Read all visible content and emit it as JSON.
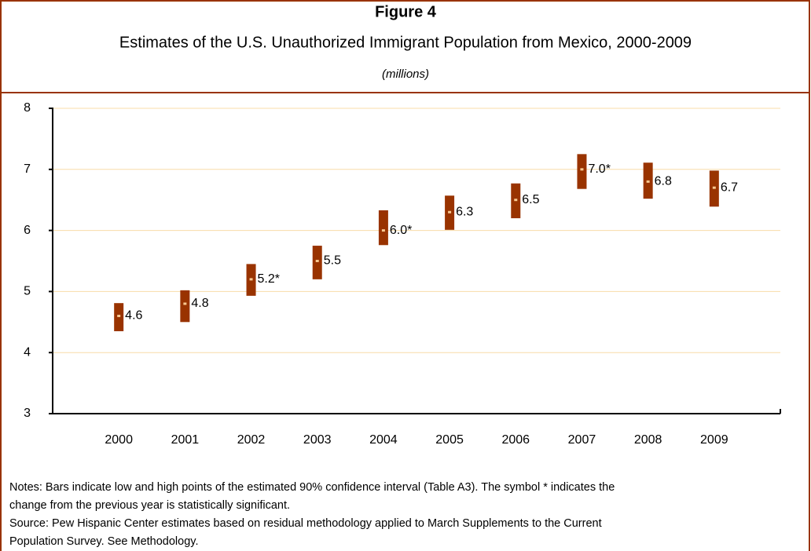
{
  "chart_data": {
    "type": "interval",
    "title": "Figure 4",
    "subtitle": "Estimates of the U.S. Unauthorized Immigrant Population from Mexico, 2000-2009",
    "unit_label": "(millions)",
    "categories": [
      "2000",
      "2001",
      "2002",
      "2003",
      "2004",
      "2005",
      "2006",
      "2007",
      "2008",
      "2009"
    ],
    "values": [
      4.6,
      4.8,
      5.2,
      5.5,
      6.0,
      6.3,
      6.5,
      7.0,
      6.8,
      6.7
    ],
    "value_labels": [
      "4.6",
      "4.8",
      "5.2*",
      "5.5",
      "6.0*",
      "6.3",
      "6.5",
      "7.0*",
      "6.8",
      "6.7"
    ],
    "low": [
      4.35,
      4.5,
      4.93,
      5.2,
      5.76,
      6.01,
      6.2,
      6.68,
      6.52,
      6.39
    ],
    "high": [
      4.81,
      5.02,
      5.45,
      5.75,
      6.33,
      6.57,
      6.77,
      7.25,
      7.11,
      6.98
    ],
    "color": "#993300",
    "point_color": "#f8c890",
    "grid_color": "#f8dca8",
    "ylim": [
      3,
      8
    ],
    "yticks": [
      3,
      4,
      5,
      6,
      7,
      8
    ],
    "grid": true,
    "notes": [
      "Notes: Bars indicate low and high points of the estimated 90% confidence interval (Table A3). The symbol * indicates the",
      "change from the previous year is statistically significant.",
      "Source: Pew Hispanic Center estimates based on residual methodology applied to March Supplements to the Current",
      "Population Survey. See Methodology."
    ]
  }
}
